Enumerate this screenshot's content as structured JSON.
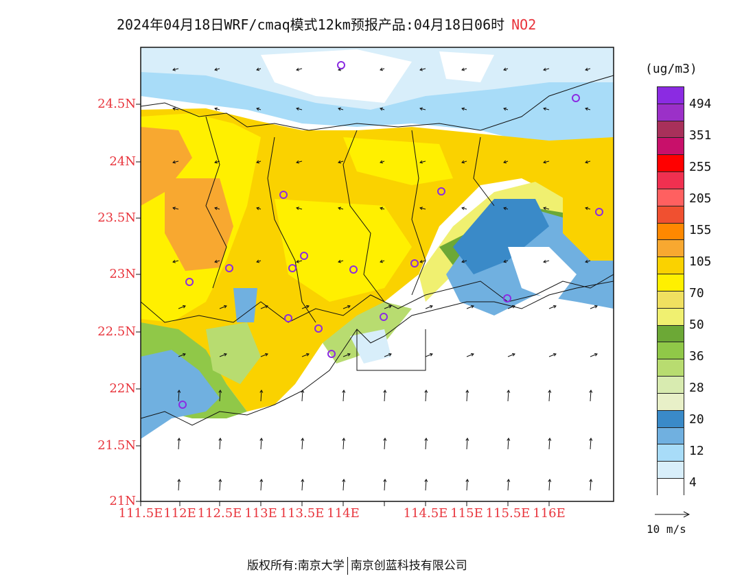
{
  "title": {
    "text": "2024年04月18日WRF/cmaq模式12km预报产品:04月18日06时",
    "pollutant": "NO2"
  },
  "axes": {
    "lat_labels": [
      "24.5N",
      "24N",
      "23.5N",
      "23N",
      "22.5N",
      "22N",
      "21.5N",
      "21N"
    ],
    "lon_labels": [
      "111.5E",
      "112E",
      "112.5E",
      "113E",
      "113.5E",
      "114E",
      "114.5E",
      "115E",
      "115.5E",
      "116E"
    ],
    "label_color": "#e8333b"
  },
  "legend": {
    "unit": "(ug/m3)",
    "labels": [
      "494",
      "351",
      "255",
      "205",
      "155",
      "105",
      "70",
      "50",
      "36",
      "28",
      "20",
      "12",
      "4"
    ],
    "colors_top_to_bottom": [
      "#8b2be2",
      "#9b30c8",
      "#a8305a",
      "#c8106a",
      "#ff0000",
      "#f03050",
      "#ff6060",
      "#f05030",
      "#ff8800",
      "#f8a830",
      "#fad200",
      "#fff000",
      "#f0e060",
      "#f0f070",
      "#6ca836",
      "#90c848",
      "#b8dc70",
      "#d8ebb0",
      "#e8f0c8",
      "#3a8ac8",
      "#70b0e0",
      "#a8dcf8",
      "#d8eefa",
      "#ffffff"
    ]
  },
  "vector_reference": {
    "label": "10 m/s"
  },
  "footer": {
    "left": "版权所有:南京大学",
    "right": "南京创蓝科技有限公司"
  }
}
